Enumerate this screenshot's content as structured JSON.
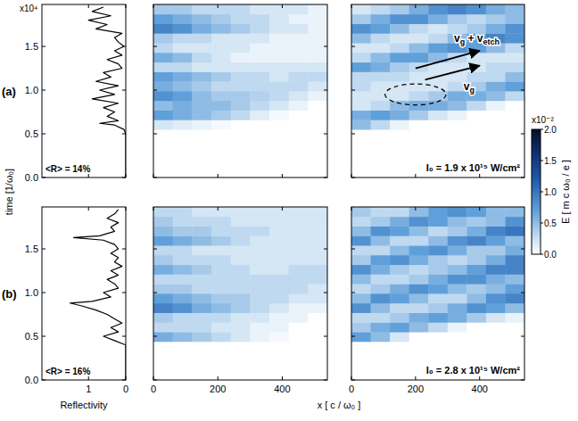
{
  "figure": {
    "ylabel": "time [1/ω₀]",
    "xlabel": "x [ c / ω₀ ]"
  },
  "colorbar": {
    "label": "E [ m c ω₀ / e ]",
    "multiplier": "x10⁻²",
    "range": [
      0,
      2.0
    ],
    "ticks": [
      {
        "value": 0,
        "label": "0.0"
      },
      {
        "value": 0.5,
        "label": "0.5"
      },
      {
        "value": 1,
        "label": "1.0"
      },
      {
        "value": 1.5,
        "label": "1.5"
      },
      {
        "value": 2,
        "label": "2.0"
      }
    ]
  },
  "chart_data": [
    {
      "type": "line",
      "panel_label": "(a)",
      "annotation": "<R> = 14%",
      "y_multiplier": "x10⁴",
      "color": "#000000",
      "xlim": [
        2.25,
        0
      ],
      "xticks": [
        1,
        0
      ],
      "ylim": [
        0,
        1.98
      ],
      "yticks": [
        {
          "value": 0,
          "label": "0.0"
        },
        {
          "value": 0.5,
          "label": "0.5"
        },
        {
          "value": 1,
          "label": "1.0"
        },
        {
          "value": 1.5,
          "label": "1.5"
        }
      ],
      "tick_labels": "y",
      "y": [
        0,
        0.5,
        0.55,
        0.6,
        0.62,
        0.65,
        0.7,
        0.75,
        0.8,
        0.85,
        0.9,
        0.95,
        1.0,
        1.05,
        1.1,
        1.15,
        1.2,
        1.25,
        1.3,
        1.35,
        1.4,
        1.45,
        1.5,
        1.55,
        1.6,
        1.65,
        1.7,
        1.75,
        1.8,
        1.85,
        1.9,
        1.95
      ],
      "values": [
        0,
        0,
        0.05,
        0.3,
        0.7,
        0.2,
        0.5,
        0.3,
        0.6,
        0.2,
        0.9,
        0.3,
        0.7,
        0.2,
        0.8,
        0.4,
        0.6,
        0.1,
        0.2,
        0.5,
        0.1,
        0.3,
        0.05,
        0.2,
        0.3,
        0.1,
        0.8,
        0.5,
        1.0,
        0.4,
        0.9,
        0.6
      ]
    },
    {
      "type": "heatmap",
      "xlim": [
        0,
        540
      ],
      "xticks": [
        0,
        200,
        400
      ],
      "ylim": [
        0,
        1.98
      ],
      "yticks": [
        0,
        0.5,
        1,
        1.5
      ],
      "tick_labels": false,
      "x_bins": [
        0,
        60,
        120,
        180,
        240,
        300,
        360,
        420,
        480,
        540
      ],
      "y_bins": [
        0,
        0.11,
        0.22,
        0.33,
        0.44,
        0.55,
        0.66,
        0.77,
        0.88,
        0.99,
        1.1,
        1.21,
        1.32,
        1.43,
        1.54,
        1.65,
        1.76,
        1.87,
        1.98
      ],
      "cells": [
        [
          0,
          0,
          0,
          0,
          0,
          0,
          0,
          0,
          0
        ],
        [
          0,
          0,
          0,
          0,
          0,
          0,
          0,
          0,
          0
        ],
        [
          0,
          0,
          0,
          0,
          0,
          0,
          0,
          0,
          0
        ],
        [
          0,
          0,
          0,
          0,
          0,
          0,
          0,
          0,
          0
        ],
        [
          0,
          0,
          0,
          0,
          0,
          0,
          0,
          0,
          0
        ],
        [
          0.2,
          0.15,
          0.1,
          0.05,
          0,
          0,
          0,
          0,
          0
        ],
        [
          0.7,
          0.6,
          0.5,
          0.4,
          0.3,
          0.15,
          0.05,
          0,
          0
        ],
        [
          0.5,
          0.6,
          0.5,
          0.5,
          0.4,
          0.3,
          0.2,
          0.1,
          0
        ],
        [
          0.8,
          0.7,
          0.5,
          0.4,
          0.4,
          0.35,
          0.3,
          0.2,
          0.1
        ],
        [
          0.6,
          0.5,
          0.4,
          0.3,
          0.3,
          0.3,
          0.3,
          0.3,
          0.2
        ],
        [
          0.7,
          0.6,
          0.5,
          0.4,
          0.3,
          0.3,
          0.2,
          0.3,
          0.3
        ],
        [
          0.3,
          0.3,
          0.2,
          0.2,
          0.2,
          0.2,
          0.2,
          0.2,
          0.2
        ],
        [
          0.6,
          0.5,
          0.3,
          0.2,
          0.1,
          0.1,
          0.1,
          0.1,
          0.1
        ],
        [
          0.3,
          0.2,
          0.2,
          0.2,
          0.2,
          0.1,
          0.1,
          0.1,
          0.1
        ],
        [
          0.4,
          0.3,
          0.3,
          0.2,
          0.2,
          0.2,
          0.1,
          0.1,
          0.1
        ],
        [
          0.9,
          0.8,
          0.6,
          0.5,
          0.4,
          0.3,
          0.2,
          0.2,
          0.1
        ],
        [
          0.7,
          0.6,
          0.5,
          0.4,
          0.3,
          0.3,
          0.2,
          0.1,
          0.1
        ],
        [
          0.4,
          0.4,
          0.3,
          0.3,
          0.3,
          0.2,
          0.2,
          0.2,
          0.1
        ]
      ]
    },
    {
      "type": "heatmap",
      "xlim": [
        0,
        540
      ],
      "xticks": [
        0,
        200,
        400
      ],
      "ylim": [
        0,
        1.98
      ],
      "yticks": [
        0,
        0.5,
        1,
        1.5
      ],
      "tick_labels": false,
      "intensity_label": "I₀ = 1.9 x 10¹⁵ W/cm²",
      "annotations": [
        {
          "shape": "arrow",
          "from": [
            200,
            1.25
          ],
          "to": [
            400,
            1.45
          ],
          "label_at": [
            320,
            1.55
          ],
          "parts": [
            {
              "text": "v"
            },
            {
              "sub": "g"
            },
            {
              "text": " + v"
            },
            {
              "sub": "etch"
            }
          ]
        },
        {
          "shape": "arrow",
          "from": [
            230,
            1.12
          ],
          "to": [
            400,
            1.28
          ],
          "label_at": [
            350,
            1.0
          ],
          "parts": [
            {
              "text": "v"
            },
            {
              "sub": "g"
            }
          ]
        },
        {
          "shape": "ellipse",
          "center": [
            200,
            0.95
          ],
          "radii": [
            95,
            0.12
          ]
        }
      ],
      "x_bins": [
        0,
        60,
        120,
        180,
        240,
        300,
        360,
        420,
        480,
        540
      ],
      "y_bins": [
        0,
        0.11,
        0.22,
        0.33,
        0.44,
        0.55,
        0.66,
        0.77,
        0.88,
        0.99,
        1.1,
        1.21,
        1.32,
        1.43,
        1.54,
        1.65,
        1.76,
        1.87,
        1.98
      ],
      "cells": [
        [
          0,
          0,
          0,
          0,
          0,
          0,
          0,
          0,
          0
        ],
        [
          0,
          0,
          0,
          0,
          0,
          0,
          0,
          0,
          0
        ],
        [
          0,
          0,
          0,
          0,
          0,
          0,
          0,
          0,
          0
        ],
        [
          0,
          0,
          0,
          0,
          0,
          0,
          0,
          0,
          0
        ],
        [
          0,
          0,
          0,
          0,
          0,
          0,
          0,
          0,
          0
        ],
        [
          0.5,
          0.3,
          0.1,
          0,
          0,
          0,
          0,
          0,
          0
        ],
        [
          0.6,
          0.7,
          0.6,
          0.4,
          0.2,
          0.1,
          0,
          0,
          0
        ],
        [
          0.2,
          0.3,
          0.5,
          0.6,
          0.6,
          0.5,
          0.3,
          0.1,
          0
        ],
        [
          0.2,
          0.2,
          0.2,
          0.3,
          0.4,
          0.6,
          0.6,
          0.5,
          0.3
        ],
        [
          0.3,
          0.2,
          0.2,
          0.2,
          0.2,
          0.3,
          0.4,
          0.6,
          0.7
        ],
        [
          0.3,
          0.3,
          0.3,
          0.2,
          0.2,
          0.2,
          0.3,
          0.3,
          0.5
        ],
        [
          0.7,
          0.6,
          0.4,
          0.3,
          0.2,
          0.2,
          0.2,
          0.3,
          0.3
        ],
        [
          0.3,
          0.5,
          0.7,
          0.7,
          0.5,
          0.3,
          0.2,
          0.2,
          0.2
        ],
        [
          0.2,
          0.2,
          0.3,
          0.5,
          0.7,
          0.8,
          0.7,
          0.5,
          0.3
        ],
        [
          0.5,
          0.3,
          0.2,
          0.2,
          0.3,
          0.5,
          0.7,
          0.9,
          0.8
        ],
        [
          0.8,
          0.7,
          0.5,
          0.3,
          0.2,
          0.3,
          0.4,
          0.6,
          0.8
        ],
        [
          0.4,
          0.6,
          0.8,
          0.8,
          0.6,
          0.4,
          0.3,
          0.4,
          0.5
        ],
        [
          0.2,
          0.3,
          0.4,
          0.6,
          0.8,
          0.9,
          0.8,
          0.6,
          0.5
        ]
      ]
    },
    {
      "type": "line",
      "panel_label": "(b)",
      "annotation": "<R> = 16%",
      "xlabel": "Reflectivity",
      "color": "#000000",
      "xlim": [
        2.25,
        0
      ],
      "xticks": [
        1,
        0
      ],
      "ylim": [
        0,
        1.98
      ],
      "yticks": [
        {
          "value": 0,
          "label": "0.0"
        },
        {
          "value": 0.5,
          "label": "0.5"
        },
        {
          "value": 1,
          "label": "1.0"
        },
        {
          "value": 1.5,
          "label": "1.5"
        }
      ],
      "tick_labels": true,
      "y": [
        0,
        0.4,
        0.45,
        0.5,
        0.55,
        0.6,
        0.65,
        0.7,
        0.75,
        0.8,
        0.85,
        0.88,
        0.9,
        0.95,
        1.0,
        1.05,
        1.1,
        1.15,
        1.2,
        1.25,
        1.3,
        1.35,
        1.4,
        1.45,
        1.5,
        1.55,
        1.6,
        1.63,
        1.65,
        1.7,
        1.75,
        1.8,
        1.85,
        1.9,
        1.95
      ],
      "values": [
        0,
        0,
        0.3,
        0.6,
        0.2,
        0.4,
        0.1,
        0.3,
        0.5,
        0.8,
        1.2,
        1.5,
        0.9,
        0.4,
        0.6,
        0.2,
        0.3,
        0.5,
        0.2,
        0.4,
        0.1,
        0.3,
        0.2,
        0.4,
        0.2,
        0.3,
        0.6,
        1.4,
        0.7,
        0.3,
        0.4,
        0.2,
        0.5,
        0.3,
        0.2
      ]
    },
    {
      "type": "heatmap",
      "xlim": [
        0,
        540
      ],
      "xticks": [
        0,
        200,
        400
      ],
      "ylim": [
        0,
        1.98
      ],
      "yticks": [
        0,
        0.5,
        1,
        1.5
      ],
      "tick_labels": "x",
      "x_bins": [
        0,
        60,
        120,
        180,
        240,
        300,
        360,
        420,
        480,
        540
      ],
      "y_bins": [
        0,
        0.11,
        0.22,
        0.33,
        0.44,
        0.55,
        0.66,
        0.77,
        0.88,
        0.99,
        1.1,
        1.21,
        1.32,
        1.43,
        1.54,
        1.65,
        1.76,
        1.87,
        1.98
      ],
      "cells": [
        [
          0,
          0,
          0,
          0,
          0,
          0,
          0,
          0,
          0
        ],
        [
          0,
          0,
          0,
          0,
          0,
          0,
          0,
          0,
          0
        ],
        [
          0,
          0,
          0,
          0,
          0,
          0,
          0,
          0,
          0
        ],
        [
          0,
          0,
          0,
          0,
          0,
          0,
          0,
          0,
          0
        ],
        [
          0.6,
          0.5,
          0.4,
          0.3,
          0.2,
          0.1,
          0.05,
          0,
          0
        ],
        [
          0.3,
          0.3,
          0.3,
          0.2,
          0.2,
          0.1,
          0.1,
          0,
          0
        ],
        [
          0.4,
          0.3,
          0.3,
          0.3,
          0.2,
          0.2,
          0.1,
          0.1,
          0
        ],
        [
          0.9,
          0.8,
          0.6,
          0.5,
          0.4,
          0.3,
          0.2,
          0.1,
          0.1
        ],
        [
          0.7,
          0.6,
          0.5,
          0.4,
          0.4,
          0.3,
          0.3,
          0.2,
          0.2
        ],
        [
          0.4,
          0.4,
          0.3,
          0.3,
          0.3,
          0.3,
          0.3,
          0.3,
          0.2
        ],
        [
          0.3,
          0.3,
          0.3,
          0.3,
          0.3,
          0.3,
          0.3,
          0.3,
          0.3
        ],
        [
          0.6,
          0.5,
          0.4,
          0.3,
          0.3,
          0.2,
          0.2,
          0.3,
          0.3
        ],
        [
          0.4,
          0.3,
          0.3,
          0.3,
          0.2,
          0.2,
          0.2,
          0.2,
          0.2
        ],
        [
          0.3,
          0.3,
          0.2,
          0.2,
          0.2,
          0.2,
          0.2,
          0.2,
          0.2
        ],
        [
          0.7,
          0.6,
          0.5,
          0.4,
          0.3,
          0.2,
          0.2,
          0.2,
          0.2
        ],
        [
          0.5,
          0.4,
          0.4,
          0.3,
          0.3,
          0.3,
          0.2,
          0.2,
          0.2
        ],
        [
          0.4,
          0.3,
          0.3,
          0.3,
          0.2,
          0.2,
          0.2,
          0.2,
          0.2
        ],
        [
          0.3,
          0.3,
          0.2,
          0.2,
          0.2,
          0.2,
          0.2,
          0.2,
          0.2
        ]
      ]
    },
    {
      "type": "heatmap",
      "xlim": [
        0,
        540
      ],
      "xticks": [
        0,
        200,
        400
      ],
      "ylim": [
        0,
        1.98
      ],
      "yticks": [
        0,
        0.5,
        1,
        1.5
      ],
      "tick_labels": "x",
      "intensity_label": "I₀ = 2.8 x 10¹⁵ W/cm²",
      "x_bins": [
        0,
        60,
        120,
        180,
        240,
        300,
        360,
        420,
        480,
        540
      ],
      "y_bins": [
        0,
        0.11,
        0.22,
        0.33,
        0.44,
        0.55,
        0.66,
        0.77,
        0.88,
        0.99,
        1.1,
        1.21,
        1.32,
        1.43,
        1.54,
        1.65,
        1.76,
        1.87,
        1.98
      ],
      "cells": [
        [
          0,
          0,
          0,
          0,
          0,
          0,
          0,
          0,
          0
        ],
        [
          0,
          0,
          0,
          0,
          0,
          0,
          0,
          0,
          0
        ],
        [
          0,
          0,
          0,
          0,
          0,
          0,
          0,
          0,
          0
        ],
        [
          0,
          0,
          0,
          0,
          0,
          0,
          0,
          0,
          0
        ],
        [
          0.7,
          0.5,
          0.2,
          0,
          0,
          0,
          0,
          0,
          0
        ],
        [
          0.4,
          0.6,
          0.7,
          0.5,
          0.3,
          0.1,
          0,
          0,
          0
        ],
        [
          0.3,
          0.3,
          0.4,
          0.6,
          0.7,
          0.6,
          0.4,
          0.2,
          0.1
        ],
        [
          0.8,
          0.5,
          0.3,
          0.3,
          0.4,
          0.6,
          0.8,
          0.7,
          0.5
        ],
        [
          0.5,
          0.8,
          0.7,
          0.5,
          0.3,
          0.3,
          0.5,
          0.8,
          0.9
        ],
        [
          0.3,
          0.4,
          0.6,
          0.8,
          0.7,
          0.5,
          0.4,
          0.5,
          0.7
        ],
        [
          0.5,
          0.3,
          0.3,
          0.4,
          0.6,
          0.8,
          0.8,
          0.6,
          0.5
        ],
        [
          0.8,
          0.6,
          0.4,
          0.3,
          0.4,
          0.5,
          0.7,
          0.9,
          0.9
        ],
        [
          0.4,
          0.7,
          0.8,
          0.6,
          0.4,
          0.3,
          0.4,
          0.6,
          0.9
        ],
        [
          0.3,
          0.3,
          0.5,
          0.7,
          0.8,
          0.6,
          0.4,
          0.4,
          0.6
        ],
        [
          0.8,
          0.5,
          0.3,
          0.3,
          0.5,
          0.8,
          0.9,
          0.7,
          0.5
        ],
        [
          0.5,
          0.8,
          0.7,
          0.5,
          0.3,
          0.4,
          0.6,
          0.9,
          1.0
        ],
        [
          0.3,
          0.4,
          0.6,
          0.8,
          0.7,
          0.5,
          0.4,
          0.5,
          0.8
        ],
        [
          0.4,
          0.3,
          0.3,
          0.5,
          0.7,
          0.8,
          0.7,
          0.5,
          0.5
        ]
      ]
    }
  ]
}
